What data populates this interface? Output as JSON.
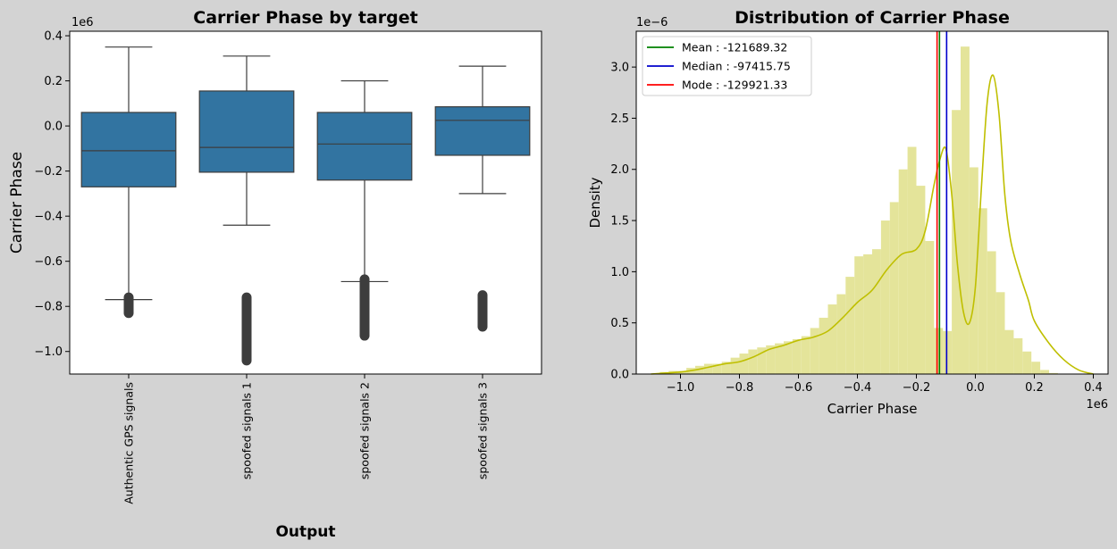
{
  "chart_data": [
    {
      "type": "box",
      "title": "Carrier Phase by target",
      "xlabel": "Output",
      "ylabel": "Carrier Phase",
      "y_offset_label": "1e6",
      "ylim": [
        -1.1,
        0.42
      ],
      "yticks": [
        0.4,
        0.2,
        0.0,
        -0.2,
        -0.4,
        -0.6,
        -0.8,
        -1.0
      ],
      "ytick_labels": [
        "0.4",
        "0.2",
        "0.0",
        "−0.2",
        "−0.4",
        "−0.6",
        "−0.8",
        "−1.0"
      ],
      "box_color": "#3274a1",
      "categories": [
        "Authentic GPS signals",
        "spoofed signals 1",
        "spoofed signals 2",
        "spoofed signals 3"
      ],
      "boxes": [
        {
          "whisker_low": -0.77,
          "q1": -0.27,
          "median": -0.11,
          "q3": 0.06,
          "whisker_high": 0.35,
          "outliers_from": -0.83,
          "outliers_to": -0.76
        },
        {
          "whisker_low": -0.44,
          "q1": -0.205,
          "median": -0.095,
          "q3": 0.155,
          "whisker_high": 0.31,
          "outliers_from": -1.04,
          "outliers_to": -0.76
        },
        {
          "whisker_low": -0.69,
          "q1": -0.24,
          "median": -0.08,
          "q3": 0.06,
          "whisker_high": 0.2,
          "outliers_from": -0.93,
          "outliers_to": -0.68
        },
        {
          "whisker_low": -0.3,
          "q1": -0.13,
          "median": 0.025,
          "q3": 0.085,
          "whisker_high": 0.265,
          "outliers_from": -0.89,
          "outliers_to": -0.75
        }
      ]
    },
    {
      "type": "histogram",
      "title": "Distribution of Carrier Phase",
      "xlabel": "Carrier Phase",
      "ylabel": "Density",
      "x_offset_label": "1e6",
      "y_offset_label": "1e−6",
      "xlim": [
        -1.15,
        0.45
      ],
      "ylim": [
        0,
        3.35
      ],
      "xticks": [
        -1.0,
        -0.8,
        -0.6,
        -0.4,
        -0.2,
        0.0,
        0.2,
        0.4
      ],
      "xtick_labels": [
        "−1.0",
        "−0.8",
        "−0.6",
        "−0.4",
        "−0.2",
        "0.0",
        "0.2",
        "0.4"
      ],
      "yticks": [
        0.0,
        0.5,
        1.0,
        1.5,
        2.0,
        2.5,
        3.0
      ],
      "ytick_labels": [
        "0.0",
        "0.5",
        "1.0",
        "1.5",
        "2.0",
        "2.5",
        "3.0"
      ],
      "bar_color": "#e4e49a",
      "kde_color": "#bfbf00",
      "bin_start": -1.1,
      "bin_width": 0.03,
      "bin_values": [
        0.0,
        0.02,
        0.03,
        0.03,
        0.06,
        0.08,
        0.1,
        0.1,
        0.12,
        0.16,
        0.2,
        0.24,
        0.26,
        0.28,
        0.3,
        0.32,
        0.34,
        0.37,
        0.45,
        0.55,
        0.68,
        0.78,
        0.95,
        1.15,
        1.17,
        1.22,
        1.5,
        1.68,
        2.0,
        2.22,
        1.84,
        1.3,
        0.45,
        0.42,
        2.58,
        3.2,
        2.02,
        1.62,
        1.2,
        0.8,
        0.43,
        0.35,
        0.22,
        0.12,
        0.04,
        0.01
      ],
      "kde_x": [
        -1.1,
        -1.05,
        -1.0,
        -0.95,
        -0.9,
        -0.85,
        -0.8,
        -0.75,
        -0.7,
        -0.65,
        -0.6,
        -0.55,
        -0.5,
        -0.45,
        -0.4,
        -0.35,
        -0.3,
        -0.25,
        -0.2,
        -0.17,
        -0.14,
        -0.12,
        -0.1,
        -0.08,
        -0.06,
        -0.04,
        -0.02,
        0.0,
        0.02,
        0.04,
        0.06,
        0.08,
        0.1,
        0.12,
        0.15,
        0.18,
        0.2,
        0.25,
        0.3,
        0.35,
        0.4
      ],
      "kde_y": [
        0.0,
        0.01,
        0.02,
        0.04,
        0.07,
        0.1,
        0.12,
        0.17,
        0.24,
        0.28,
        0.33,
        0.36,
        0.42,
        0.55,
        0.7,
        0.82,
        1.02,
        1.17,
        1.22,
        1.4,
        1.85,
        2.1,
        2.2,
        1.75,
        1.05,
        0.6,
        0.5,
        0.85,
        1.8,
        2.65,
        2.92,
        2.55,
        1.75,
        1.3,
        0.98,
        0.72,
        0.52,
        0.3,
        0.14,
        0.04,
        0.0
      ],
      "series": [
        {
          "name": "Mean :  -121689.32",
          "value": -0.12168932,
          "color": "#008000"
        },
        {
          "name": "Median :  -97415.75",
          "value": -0.09741575,
          "color": "#0000cc"
        },
        {
          "name": "Mode :  -129921.33",
          "value": -0.12992133,
          "color": "#ff0000"
        }
      ],
      "legend": "top-left"
    }
  ]
}
